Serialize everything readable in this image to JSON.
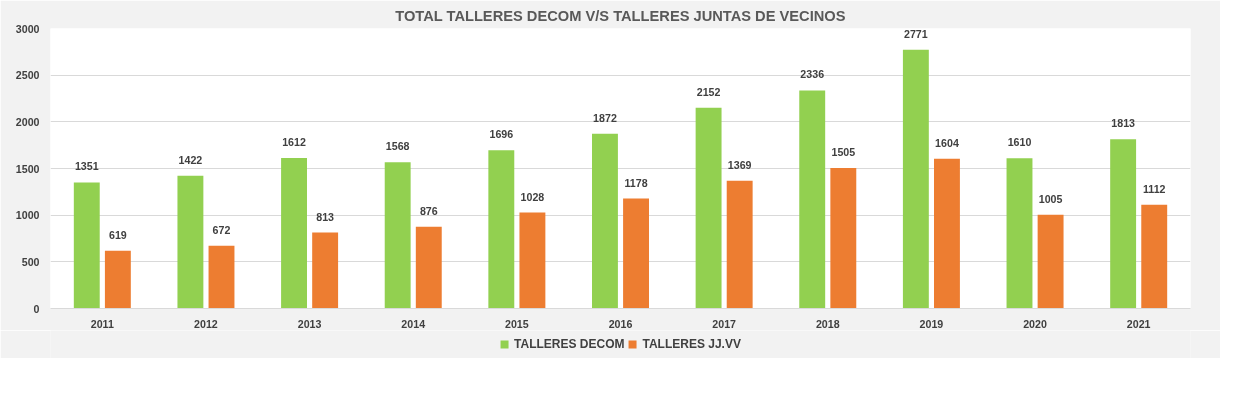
{
  "chart_data": {
    "type": "bar",
    "title": "TOTAL TALLERES DECOM V/S TALLERES JUNTAS DE VECINOS",
    "categories": [
      "2011",
      "2012",
      "2013",
      "2014",
      "2015",
      "2016",
      "2017",
      "2018",
      "2019",
      "2020",
      "2021"
    ],
    "series": [
      {
        "name": "TALLERES DECOM",
        "color": "#92d050",
        "values": [
          1351,
          1422,
          1612,
          1568,
          1696,
          1872,
          2152,
          2336,
          2771,
          1610,
          1813
        ]
      },
      {
        "name": "TALLERES JJ.VV",
        "color": "#ed7d31",
        "values": [
          619,
          672,
          813,
          876,
          1028,
          1178,
          1369,
          1505,
          1604,
          1005,
          1112
        ]
      }
    ],
    "ylim": [
      0,
      3000
    ],
    "yticks": [
      0,
      500,
      1000,
      1500,
      2000,
      2500,
      3000
    ],
    "grid": "y",
    "legend": "bottom",
    "data_labels": true
  }
}
